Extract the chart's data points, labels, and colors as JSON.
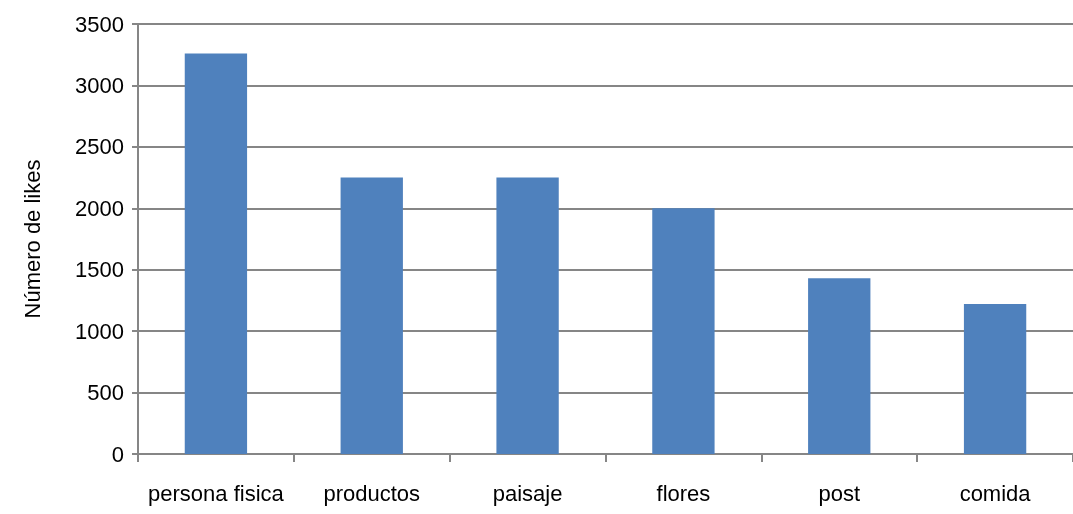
{
  "chart_data": {
    "type": "bar",
    "ylabel": "Número de likes",
    "categories": [
      "persona fisica",
      "productos",
      "paisaje",
      "flores",
      "post",
      "comida"
    ],
    "values": [
      3260,
      2250,
      2250,
      2000,
      1430,
      1220
    ],
    "color": "#4f81bd",
    "ylim": [
      0,
      3500
    ],
    "yticks": [
      0,
      500,
      1000,
      1500,
      2000,
      2500,
      3000,
      3500
    ],
    "grid": "y"
  }
}
